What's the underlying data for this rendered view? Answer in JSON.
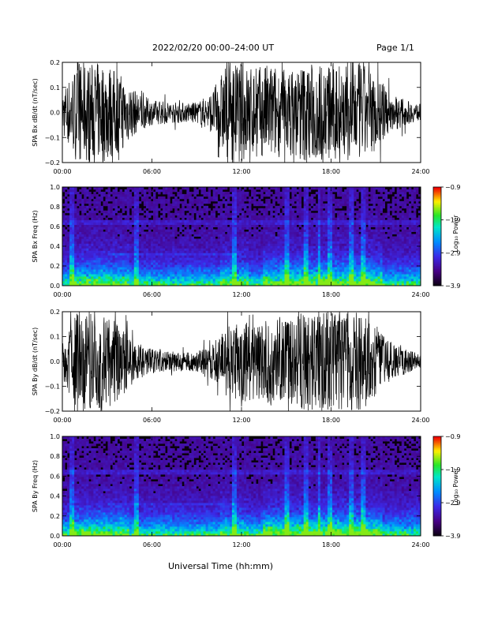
{
  "header": {
    "title": "2022/02/20  00:00–24:00 UT",
    "page": "Page 1/1"
  },
  "footer": {
    "xlabel": "Universal Time (hh:mm)"
  },
  "colors": {
    "trace": "#000000",
    "frame": "#000000",
    "background": "#ffffff"
  },
  "chart_data": [
    {
      "type": "line",
      "ylabel": "SPA Bx dB/dt (nT/sec)",
      "x_ticks": [
        "00:00",
        "06:00",
        "12:00",
        "18:00",
        "24:00"
      ],
      "y_ticks": [
        "0.2",
        "0.1",
        "0.0",
        "−0.1",
        "−0.2"
      ],
      "xlim": [
        0,
        24
      ],
      "ylim": [
        -0.2,
        0.2
      ],
      "envelope_hours": [
        0,
        1,
        2,
        3,
        4,
        5,
        6,
        7,
        8,
        9,
        10,
        11,
        12,
        13,
        14,
        15,
        16,
        17,
        18,
        19,
        20,
        21,
        22,
        23,
        24
      ],
      "envelope_amplitude": [
        0.09,
        0.2,
        0.2,
        0.2,
        0.15,
        0.08,
        0.05,
        0.045,
        0.04,
        0.04,
        0.08,
        0.2,
        0.2,
        0.18,
        0.2,
        0.16,
        0.2,
        0.2,
        0.2,
        0.2,
        0.2,
        0.15,
        0.08,
        0.05,
        0.03
      ]
    },
    {
      "type": "heatmap",
      "ylabel": "SPA Bx Freq (Hz)",
      "x_ticks": [
        "00:00",
        "06:00",
        "12:00",
        "18:00",
        "24:00"
      ],
      "y_ticks": [
        "1.0",
        "0.8",
        "0.6",
        "0.4",
        "0.2",
        "0.0"
      ],
      "xlim": [
        0,
        24
      ],
      "ylim": [
        0,
        1
      ],
      "colorbar": {
        "label": "Log₁₀ Power",
        "ticks": [
          "−0.9",
          "−1.9",
          "−2.9",
          "−3.9"
        ],
        "range": [
          -3.9,
          -0.9
        ]
      }
    },
    {
      "type": "line",
      "ylabel": "SPA By dB/dt (nT/sec)",
      "x_ticks": [
        "00:00",
        "06:00",
        "12:00",
        "18:00",
        "24:00"
      ],
      "y_ticks": [
        "0.2",
        "0.1",
        "0.0",
        "−0.1",
        "−0.2"
      ],
      "xlim": [
        0,
        24
      ],
      "ylim": [
        -0.2,
        0.2
      ],
      "envelope_hours": [
        0,
        1,
        2,
        3,
        4,
        5,
        6,
        7,
        8,
        9,
        10,
        11,
        12,
        13,
        14,
        15,
        16,
        17,
        18,
        19,
        20,
        21,
        22,
        23,
        24
      ],
      "envelope_amplitude": [
        0.07,
        0.2,
        0.2,
        0.2,
        0.14,
        0.07,
        0.05,
        0.04,
        0.04,
        0.04,
        0.07,
        0.14,
        0.17,
        0.15,
        0.18,
        0.16,
        0.2,
        0.2,
        0.2,
        0.2,
        0.2,
        0.14,
        0.08,
        0.05,
        0.03
      ]
    },
    {
      "type": "heatmap",
      "ylabel": "SPA By Freq (Hz)",
      "x_ticks": [
        "00:00",
        "06:00",
        "12:00",
        "18:00",
        "24:00"
      ],
      "y_ticks": [
        "1.0",
        "0.8",
        "0.6",
        "0.4",
        "0.2",
        "0.0"
      ],
      "xlim": [
        0,
        24
      ],
      "ylim": [
        0,
        1
      ],
      "colorbar": {
        "label": "Log₁₀ Power",
        "ticks": [
          "−0.9",
          "−1.9",
          "−2.9",
          "−3.9"
        ],
        "range": [
          -3.9,
          -0.9
        ]
      }
    }
  ]
}
